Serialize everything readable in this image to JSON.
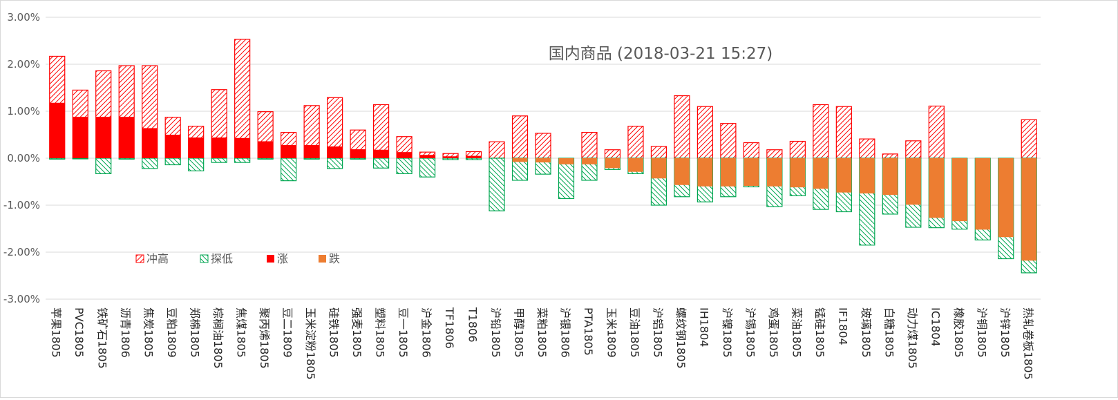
{
  "chart_data": {
    "type": "bar",
    "title": "国内商品 (2018-03-21 15:27)",
    "ylim": [
      -3,
      3
    ],
    "y_ticks": [
      "3.00%",
      "2.00%",
      "1.00%",
      "0.00%",
      "-1.00%",
      "-2.00%",
      "-3.00%"
    ],
    "legend_position": "lower-left, inside plot",
    "grid": true,
    "legend": [
      "冲高",
      "探低",
      "涨",
      "跌"
    ],
    "colors": {
      "high": "#ff0000",
      "low": "#00a651",
      "up": "#ff0000",
      "down": "#ed7d31",
      "grid": "#d9d9d9"
    },
    "categories": [
      "苹果1805",
      "PVC1805",
      "铁矿石1805",
      "沥青1806",
      "焦炭1805",
      "豆粕1809",
      "郑棉1805",
      "棕榈油1805",
      "焦煤1805",
      "聚丙烯1805",
      "豆二1809",
      "玉米淀粉1805",
      "硅铁1805",
      "强麦1805",
      "塑料1805",
      "豆一1805",
      "沪金1806",
      "TF1806",
      "T1806",
      "沪铅1805",
      "甲醇1805",
      "菜粕1805",
      "沪银1806",
      "PTA1805",
      "玉米1809",
      "豆油1805",
      "沪铝1805",
      "螺纹钢1805",
      "IH1804",
      "沪镍1805",
      "沪锡1805",
      "鸡蛋1805",
      "菜油1805",
      "锰硅1805",
      "IF1804",
      "玻璃1805",
      "白糖1805",
      "动力煤1805",
      "IC1804",
      "橡胶1805",
      "沪铜1805",
      "沪锌1805",
      "热轧卷板1805"
    ],
    "series": [
      {
        "name": "冲高",
        "values": [
          2.17,
          1.45,
          1.86,
          1.97,
          1.97,
          0.87,
          0.68,
          1.46,
          2.53,
          0.99,
          0.55,
          1.12,
          1.29,
          0.6,
          1.14,
          0.46,
          0.13,
          0.1,
          0.14,
          0.35,
          0.9,
          0.53,
          0.0,
          0.55,
          0.18,
          0.68,
          0.25,
          1.33,
          1.1,
          0.74,
          0.33,
          0.18,
          0.36,
          1.14,
          1.1,
          0.41,
          0.09,
          0.37,
          1.11,
          0.0,
          0.0,
          0.0,
          0.82
        ]
      },
      {
        "name": "探低",
        "values": [
          -0.02,
          -0.01,
          -0.33,
          -0.02,
          -0.22,
          -0.14,
          -0.27,
          -0.09,
          -0.09,
          -0.02,
          -0.48,
          -0.02,
          -0.22,
          -0.02,
          -0.21,
          -0.33,
          -0.4,
          -0.03,
          -0.03,
          -1.12,
          -0.47,
          -0.34,
          -0.86,
          -0.47,
          -0.24,
          -0.33,
          -1.0,
          -0.82,
          -0.93,
          -0.82,
          -0.61,
          -1.03,
          -0.8,
          -1.09,
          -1.14,
          -1.85,
          -1.19,
          -1.47,
          -1.48,
          -1.51,
          -1.74,
          -2.14,
          -2.44
        ]
      },
      {
        "name": "涨",
        "values": [
          1.18,
          0.88,
          0.88,
          0.88,
          0.64,
          0.5,
          0.44,
          0.44,
          0.43,
          0.36,
          0.28,
          0.28,
          0.25,
          0.19,
          0.18,
          0.13,
          0.07,
          0.04,
          0.05,
          0.0,
          0.0,
          0.0,
          0.0,
          0.0,
          0.0,
          0.0,
          0.0,
          0.0,
          0.0,
          0.0,
          0.0,
          0.0,
          0.0,
          0.0,
          0.0,
          0.0,
          0.0,
          0.0,
          0.0,
          0.0,
          0.0,
          0.0,
          0.0
        ]
      },
      {
        "name": "跌",
        "values": [
          0.0,
          0.0,
          0.0,
          0.0,
          0.0,
          0.0,
          0.0,
          0.0,
          0.0,
          0.0,
          0.0,
          0.0,
          0.0,
          0.0,
          0.0,
          0.0,
          0.0,
          0.0,
          0.0,
          0.0,
          -0.08,
          -0.09,
          -0.13,
          -0.13,
          -0.21,
          -0.29,
          -0.43,
          -0.57,
          -0.6,
          -0.6,
          -0.59,
          -0.6,
          -0.62,
          -0.65,
          -0.73,
          -0.75,
          -0.78,
          -0.99,
          -1.27,
          -1.34,
          -1.52,
          -1.68,
          -2.18
        ]
      }
    ]
  }
}
